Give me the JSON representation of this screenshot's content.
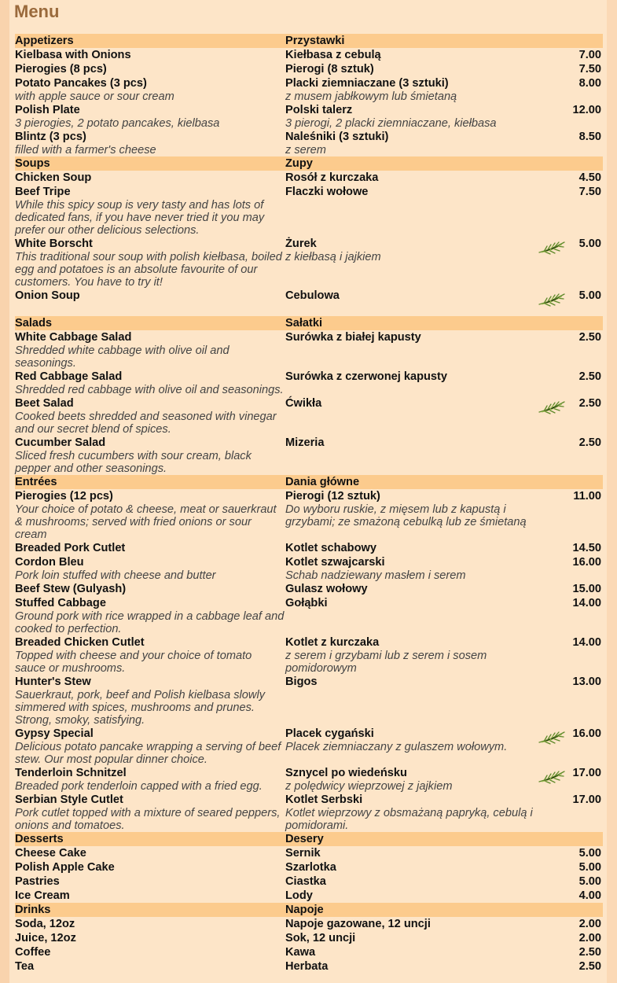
{
  "title": "Menu",
  "colors": {
    "header_row": "#fccb8d",
    "background": "#fde5c8",
    "title": "#9a6a3c",
    "herb_icon": "#6a8a2c"
  },
  "sections": [
    {
      "en": "Appetizers",
      "pl": "Przystawki",
      "items": [
        {
          "en": "Kielbasa with Onions",
          "pl": "Kiełbasa z cebulą",
          "price": "7.00"
        },
        {
          "en": "Pierogies (8 pcs)",
          "pl": "Pierogi (8 sztuk)",
          "price": "7.50"
        },
        {
          "en": "Potato Pancakes (3 pcs)",
          "en_desc": "with apple sauce or sour cream",
          "pl": "Placki ziemniaczane (3 sztuki)",
          "pl_desc": "z musem jabłkowym lub śmietaną",
          "price": "8.00"
        },
        {
          "en": "Polish Plate",
          "en_desc": "3 pierogies, 2 potato pancakes, kielbasa",
          "pl": "Polski talerz",
          "pl_desc": "3 pierogi, 2 placki ziemniaczane, kiełbasa",
          "price": "12.00"
        },
        {
          "en": "Blintz (3 pcs)",
          "en_desc": "filled with a farmer's cheese",
          "pl": "Naleśniki (3 sztuki)",
          "pl_desc": "z serem",
          "price": "8.50"
        }
      ]
    },
    {
      "en": "Soups",
      "pl": "Zupy",
      "items": [
        {
          "en": "Chicken Soup",
          "pl": "Rosół z kurczaka",
          "price": "4.50"
        },
        {
          "en": "Beef Tripe",
          "en_desc": "While this spicy soup is very tasty and has lots of dedicated fans, if you have never tried it you may prefer our other delicious selections.",
          "pl": "Flaczki wołowe",
          "price": "7.50"
        },
        {
          "en": "White Borscht",
          "en_desc": "This traditional sour soup with polish kiełbasa, boiled egg and potatoes is an absolute favourite of our customers. You have to try it!",
          "pl": "Żurek",
          "pl_desc": "z kiełbasą i jajkiem",
          "price": "5.00",
          "icon": "herb-icon"
        },
        {
          "en": "Onion Soup",
          "pl": "Cebulowa",
          "price": "5.00",
          "icon": "herb-icon",
          "tall": true
        }
      ]
    },
    {
      "en": "Salads",
      "pl": "Sałatki",
      "items": [
        {
          "en": "White Cabbage Salad",
          "en_desc": "Shredded white cabbage with olive oil and seasonings.",
          "pl": "Surówka z białej kapusty",
          "price": "2.50"
        },
        {
          "en": "Red Cabbage Salad",
          "en_desc": "Shredded red cabbage with olive oil and seasonings.",
          "pl": "Surówka z czerwonej kapusty",
          "price": "2.50"
        },
        {
          "en": "Beet Salad",
          "en_desc": "Cooked beets shredded and seasoned with vinegar and our secret blend of spices.",
          "pl": "Ćwikła",
          "price": "2.50",
          "icon": "herb-icon"
        },
        {
          "en": "Cucumber Salad",
          "en_desc": "Sliced fresh cucumbers with sour cream, black pepper and other seasonings.",
          "pl": "Mizeria",
          "price": "2.50"
        }
      ]
    },
    {
      "en": "Entrées",
      "pl": "Dania główne",
      "items": [
        {
          "en": "Pierogies (12 pcs)",
          "en_desc": "Your choice of potato & cheese, meat or sauerkraut & mushrooms; served with fried onions or sour cream",
          "pl": "Pierogi (12 sztuk)",
          "pl_desc": "Do wyboru ruskie, z mięsem lub z kapustą i grzybami; ze smażoną cebulką lub ze śmietaną",
          "price": "11.00"
        },
        {
          "en": "Breaded Pork Cutlet",
          "pl": "Kotlet schabowy",
          "price": "14.50"
        },
        {
          "en": "Cordon Bleu",
          "en_desc": "Pork loin stuffed with cheese and butter",
          "pl": "Kotlet szwajcarski",
          "pl_desc": "Schab nadziewany masłem i serem",
          "price": "16.00"
        },
        {
          "en": "Beef Stew (Gulyash)",
          "pl": "Gulasz wołowy",
          "price": "15.00"
        },
        {
          "en": "Stuffed Cabbage",
          "en_desc": "Ground pork with rice wrapped in a cabbage leaf and cooked to perfection.",
          "pl": "Gołąbki",
          "price": "14.00"
        },
        {
          "en": "Breaded Chicken Cutlet",
          "en_desc": "Topped with cheese and your choice of tomato sauce or mushrooms.",
          "pl": "Kotlet z kurczaka",
          "pl_desc": "z serem i grzybami lub z serem i sosem pomidorowym",
          "price": "14.00"
        },
        {
          "en": "Hunter's Stew",
          "en_desc": "Sauerkraut, pork, beef and Polish kielbasa slowly simmered with spices, mushrooms and prunes. Strong, smoky, satisfying.",
          "pl": "Bigos",
          "price": "13.00"
        },
        {
          "en": "Gypsy Special",
          "en_desc": "Delicious potato pancake wrapping a serving of beef stew. Our most popular dinner choice.",
          "pl": "Placek cygański",
          "pl_desc": "Placek ziemniaczany z gulaszem wołowym.",
          "price": "16.00",
          "icon": "herb-icon"
        },
        {
          "en": "Tenderloin Schnitzel",
          "en_desc": "Breaded pork tenderloin capped with a fried egg.",
          "pl": "Sznycel po wiedeńsku",
          "pl_desc": "z polędwicy wieprzowej z jajkiem",
          "price": "17.00",
          "icon": "herb-icon"
        },
        {
          "en": "Serbian Style Cutlet",
          "en_desc": "Pork cutlet topped with a mixture of seared peppers, onions and tomatoes.",
          "pl": "Kotlet Serbski",
          "pl_desc": "Kotlet wieprzowy z obsmażaną papryką, cebulą i pomidorami.",
          "price": "17.00"
        }
      ]
    },
    {
      "en": "Desserts",
      "pl": "Desery",
      "items": [
        {
          "en": "Cheese Cake",
          "pl": "Sernik",
          "price": "5.00"
        },
        {
          "en": "Polish Apple Cake",
          "pl": "Szarlotka",
          "price": "5.00"
        },
        {
          "en": "Pastries",
          "pl": "Ciastka",
          "price": "5.00"
        },
        {
          "en": "Ice Cream",
          "pl": "Lody",
          "price": "4.00"
        }
      ]
    },
    {
      "en": "Drinks",
      "pl": "Napoje",
      "items": [
        {
          "en": "Soda, 12oz",
          "pl": "Napoje gazowane, 12 uncji",
          "price": "2.00"
        },
        {
          "en": "Juice, 12oz",
          "pl": "Sok, 12 uncji",
          "price": "2.00"
        },
        {
          "en": "Coffee",
          "pl": "Kawa",
          "price": "2.50"
        },
        {
          "en": "Tea",
          "pl": "Herbata",
          "price": "2.50"
        }
      ]
    }
  ]
}
